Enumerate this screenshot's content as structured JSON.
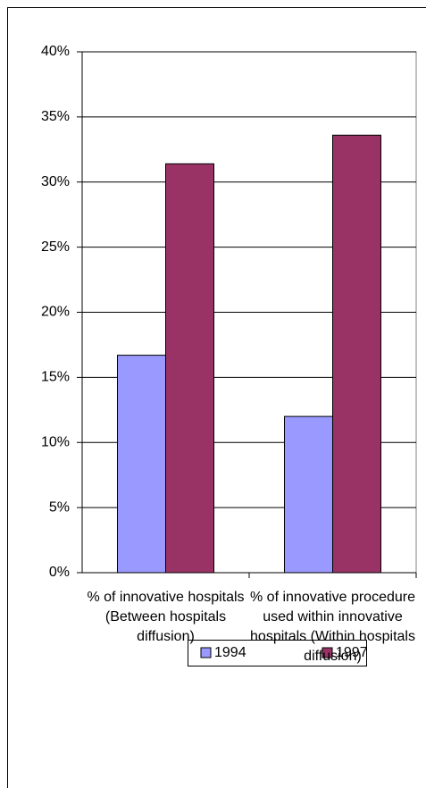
{
  "chart_data": {
    "type": "bar",
    "categories": [
      "% of innovative hospitals (Between hospitals diffusion)",
      "% of innovative procedure used within innovative hospitals (Within hospitals diffusion)"
    ],
    "series": [
      {
        "name": "1994",
        "color": "#9999ff",
        "values": [
          16.7,
          12.0
        ]
      },
      {
        "name": "1997",
        "color": "#993366",
        "values": [
          31.4,
          33.6
        ]
      }
    ],
    "ylim": [
      0,
      40
    ],
    "yticks": [
      {
        "value": 0,
        "label": "0%"
      },
      {
        "value": 5,
        "label": "5%"
      },
      {
        "value": 10,
        "label": "10%"
      },
      {
        "value": 15,
        "label": "15%"
      },
      {
        "value": 20,
        "label": "20%"
      },
      {
        "value": 25,
        "label": "25%"
      },
      {
        "value": 30,
        "label": "30%"
      },
      {
        "value": 35,
        "label": "35%"
      },
      {
        "value": 40,
        "label": "40%"
      }
    ],
    "grid": true
  }
}
